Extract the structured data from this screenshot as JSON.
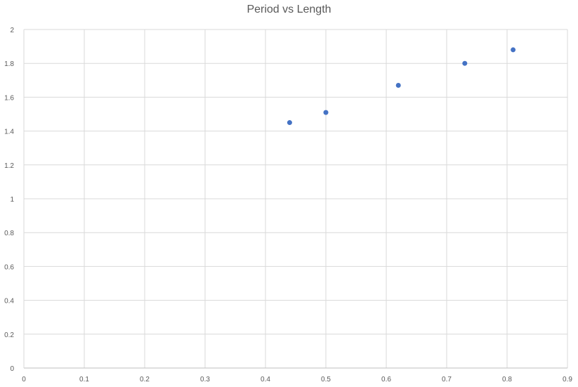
{
  "chart_data": {
    "type": "scatter",
    "title": "Period vs Length",
    "xlabel": "",
    "ylabel": "",
    "xlim": [
      0,
      0.9
    ],
    "ylim": [
      0,
      2
    ],
    "x_ticks": [
      "0",
      "0.1",
      "0.2",
      "0.3",
      "0.4",
      "0.5",
      "0.6",
      "0.7",
      "0.8",
      "0.9"
    ],
    "y_ticks": [
      "0",
      "0.2",
      "0.4",
      "0.6",
      "0.8",
      "1",
      "1.2",
      "1.4",
      "1.6",
      "1.8",
      "2"
    ],
    "grid": true,
    "legend": "none",
    "series": [
      {
        "color": "#4472c4",
        "points": [
          {
            "x": 0.44,
            "y": 1.45
          },
          {
            "x": 0.5,
            "y": 1.51
          },
          {
            "x": 0.62,
            "y": 1.67
          },
          {
            "x": 0.73,
            "y": 1.8
          },
          {
            "x": 0.81,
            "y": 1.88
          }
        ]
      }
    ]
  }
}
